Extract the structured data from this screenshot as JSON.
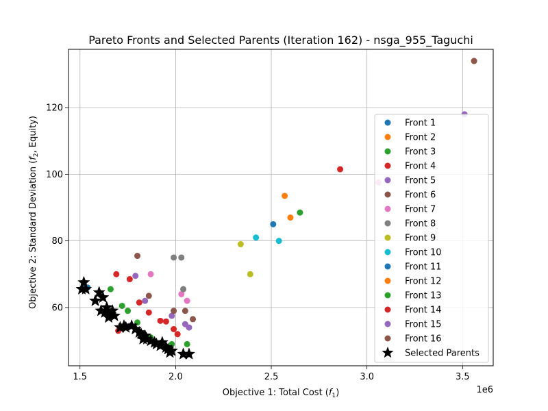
{
  "chart_data": {
    "type": "scatter",
    "title": "Pareto Fronts and Selected Parents (Iteration 162) - nsga_955_Taguchi",
    "xlabel": "Objective 1: Total Cost (",
    "xlabel_var": "f",
    "xlabel_sub": "1",
    "xlabel_end": ")",
    "ylabel": "Objective 2: Standard Deviation (",
    "ylabel_var": "f",
    "ylabel_sub": "2",
    "ylabel_end": ", Equity)",
    "x_offset_label": "1e6",
    "xlim": [
      1.44,
      3.66
    ],
    "ylim": [
      42.5,
      137.5
    ],
    "xticks": [
      1.5,
      2.0,
      2.5,
      3.0,
      3.5
    ],
    "xtick_labels": [
      "1.5",
      "2.0",
      "2.5",
      "3.0",
      "3.5"
    ],
    "yticks": [
      60,
      80,
      100,
      120
    ],
    "ytick_labels": [
      "60",
      "80",
      "100",
      "120"
    ],
    "grid": true,
    "legend_position": "right",
    "series": [
      {
        "name": "Front 1",
        "color": "#1f77b4",
        "x": [
          1.52,
          1.54
        ],
        "y": [
          67.0,
          66.0
        ]
      },
      {
        "name": "Front 2",
        "color": "#ff7f0e",
        "x": [
          3.56
        ],
        "y": [
          134.0
        ]
      },
      {
        "name": "Front 3",
        "color": "#2ca02c",
        "x": [
          1.72,
          1.66,
          1.75,
          1.8,
          1.87,
          1.98,
          2.06
        ],
        "y": [
          60.5,
          65.5,
          59.0,
          55.5,
          51.0,
          49.0,
          49.0
        ]
      },
      {
        "name": "Front 4",
        "color": "#d62728",
        "x": [
          1.69,
          1.76,
          1.81,
          1.86,
          1.92,
          1.95,
          1.99,
          2.01,
          2.86
        ],
        "y": [
          70.0,
          68.5,
          61.5,
          58.5,
          56.0,
          55.8,
          53.5,
          52.0,
          101.5
        ]
      },
      {
        "name": "Front 5",
        "color": "#9467bd",
        "x": [
          1.79,
          1.84,
          1.98,
          2.05,
          2.07,
          3.51
        ],
        "y": [
          69.5,
          62.0,
          57.5,
          55.0,
          54.0,
          118.0
        ]
      },
      {
        "name": "Front 6",
        "color": "#8c564b",
        "x": [
          1.8,
          1.86,
          1.99,
          2.05,
          2.09
        ],
        "y": [
          75.5,
          63.5,
          59.0,
          59.0,
          56.5
        ]
      },
      {
        "name": "Front 7",
        "color": "#e377c2",
        "x": [
          1.87,
          2.03,
          2.06,
          3.06
        ],
        "y": [
          70.0,
          64.0,
          62.0,
          97.5
        ]
      },
      {
        "name": "Front 8",
        "color": "#7f7f7f",
        "x": [
          1.99,
          2.03,
          2.04
        ],
        "y": [
          75.0,
          75.0,
          65.5
        ]
      },
      {
        "name": "Front 9",
        "color": "#bcbd22",
        "x": [
          2.34,
          2.39
        ],
        "y": [
          79.0,
          70.0
        ]
      },
      {
        "name": "Front 10",
        "color": "#17becf",
        "x": [
          2.42,
          2.54
        ],
        "y": [
          81.0,
          80.0
        ]
      },
      {
        "name": "Front 11",
        "color": "#1f77b4",
        "x": [
          2.51
        ],
        "y": [
          85.0
        ]
      },
      {
        "name": "Front 12",
        "color": "#ff7f0e",
        "x": [
          2.57,
          2.6
        ],
        "y": [
          93.5,
          87.0
        ]
      },
      {
        "name": "Front 13",
        "color": "#2ca02c",
        "x": [
          2.65
        ],
        "y": [
          88.5
        ]
      },
      {
        "name": "Front 14",
        "color": "#d62728",
        "x": [
          1.7
        ],
        "y": [
          53.0
        ]
      },
      {
        "name": "Front 15",
        "color": "#9467bd",
        "x": [
          1.76
        ],
        "y": [
          54.5
        ]
      },
      {
        "name": "Front 16",
        "color": "#8c564b",
        "x": [
          3.56
        ],
        "y": [
          134.0
        ]
      },
      {
        "name": "Selected Parents",
        "color": "#000000",
        "marker": "star",
        "x": [
          1.52,
          1.51,
          1.53,
          1.58,
          1.6,
          1.62,
          1.61,
          1.63,
          1.64,
          1.66,
          1.67,
          1.68,
          1.65,
          1.71,
          1.73,
          1.74,
          1.77,
          1.79,
          1.81,
          1.82,
          1.83,
          1.84,
          1.85,
          1.87,
          1.89,
          1.9,
          1.92,
          1.93,
          1.95,
          1.96,
          1.97,
          1.98,
          2.04,
          2.07
        ],
        "y": [
          67.5,
          65.5,
          65.5,
          62.0,
          64.5,
          63.0,
          59.0,
          58.5,
          60.0,
          58.0,
          59.0,
          57.5,
          57.0,
          54.0,
          54.5,
          54.0,
          54.5,
          53.5,
          52.5,
          52.0,
          50.5,
          51.5,
          50.5,
          50.0,
          49.5,
          49.0,
          48.5,
          49.5,
          48.0,
          47.5,
          46.5,
          47.0,
          46.0,
          46.0
        ]
      }
    ]
  }
}
